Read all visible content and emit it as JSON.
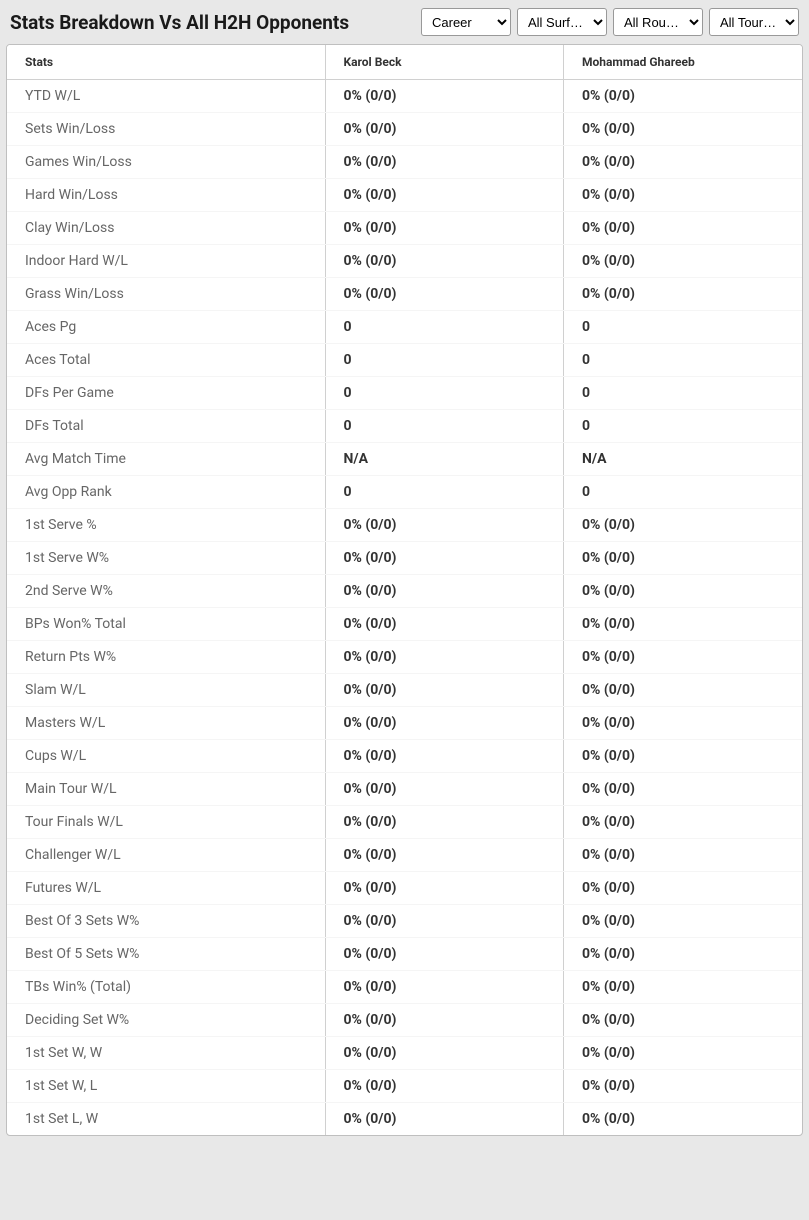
{
  "header": {
    "title": "Stats Breakdown Vs All H2H Opponents"
  },
  "filters": {
    "period": {
      "selected": "Career",
      "options": [
        "Career"
      ]
    },
    "surface": {
      "selected": "All Surf…",
      "options": [
        "All Surf…"
      ]
    },
    "round": {
      "selected": "All Rou…",
      "options": [
        "All Rou…"
      ]
    },
    "tour": {
      "selected": "All Tour…",
      "options": [
        "All Tour…"
      ]
    }
  },
  "table": {
    "columns": [
      "Stats",
      "Karol Beck",
      "Mohammad Ghareeb"
    ],
    "rows": [
      [
        "YTD W/L",
        "0% (0/0)",
        "0% (0/0)"
      ],
      [
        "Sets Win/Loss",
        "0% (0/0)",
        "0% (0/0)"
      ],
      [
        "Games Win/Loss",
        "0% (0/0)",
        "0% (0/0)"
      ],
      [
        "Hard Win/Loss",
        "0% (0/0)",
        "0% (0/0)"
      ],
      [
        "Clay Win/Loss",
        "0% (0/0)",
        "0% (0/0)"
      ],
      [
        "Indoor Hard W/L",
        "0% (0/0)",
        "0% (0/0)"
      ],
      [
        "Grass Win/Loss",
        "0% (0/0)",
        "0% (0/0)"
      ],
      [
        "Aces Pg",
        "0",
        "0"
      ],
      [
        "Aces Total",
        "0",
        "0"
      ],
      [
        "DFs Per Game",
        "0",
        "0"
      ],
      [
        "DFs Total",
        "0",
        "0"
      ],
      [
        "Avg Match Time",
        "N/A",
        "N/A"
      ],
      [
        "Avg Opp Rank",
        "0",
        "0"
      ],
      [
        "1st Serve %",
        "0% (0/0)",
        "0% (0/0)"
      ],
      [
        "1st Serve W%",
        "0% (0/0)",
        "0% (0/0)"
      ],
      [
        "2nd Serve W%",
        "0% (0/0)",
        "0% (0/0)"
      ],
      [
        "BPs Won% Total",
        "0% (0/0)",
        "0% (0/0)"
      ],
      [
        "Return Pts W%",
        "0% (0/0)",
        "0% (0/0)"
      ],
      [
        "Slam W/L",
        "0% (0/0)",
        "0% (0/0)"
      ],
      [
        "Masters W/L",
        "0% (0/0)",
        "0% (0/0)"
      ],
      [
        "Cups W/L",
        "0% (0/0)",
        "0% (0/0)"
      ],
      [
        "Main Tour W/L",
        "0% (0/0)",
        "0% (0/0)"
      ],
      [
        "Tour Finals W/L",
        "0% (0/0)",
        "0% (0/0)"
      ],
      [
        "Challenger W/L",
        "0% (0/0)",
        "0% (0/0)"
      ],
      [
        "Futures W/L",
        "0% (0/0)",
        "0% (0/0)"
      ],
      [
        "Best Of 3 Sets W%",
        "0% (0/0)",
        "0% (0/0)"
      ],
      [
        "Best Of 5 Sets W%",
        "0% (0/0)",
        "0% (0/0)"
      ],
      [
        "TBs Win% (Total)",
        "0% (0/0)",
        "0% (0/0)"
      ],
      [
        "Deciding Set W%",
        "0% (0/0)",
        "0% (0/0)"
      ],
      [
        "1st Set W, W",
        "0% (0/0)",
        "0% (0/0)"
      ],
      [
        "1st Set W, L",
        "0% (0/0)",
        "0% (0/0)"
      ],
      [
        "1st Set L, W",
        "0% (0/0)",
        "0% (0/0)"
      ]
    ]
  },
  "styling": {
    "background_color": "#e8e8e8",
    "table_background": "#ffffff",
    "border_color": "#bfbfbf",
    "column_divider": "#d0d0d0",
    "header_fontsize": 12,
    "cell_fontsize": 14,
    "title_fontsize": 19,
    "stat_label_color": "#666",
    "value_color": "#333"
  }
}
